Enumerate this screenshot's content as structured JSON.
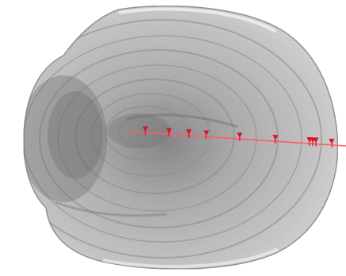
{
  "image": {
    "subject": "otolith-grayscale",
    "background_color": "#ffffff",
    "specimen_colors": {
      "light": "#d6d6d6",
      "mid": "#a9a9a9",
      "dark": "#5c5c5c"
    },
    "transect_color": "#ff5c6a",
    "marker_color": "#e0102a",
    "marker_count": 10
  }
}
